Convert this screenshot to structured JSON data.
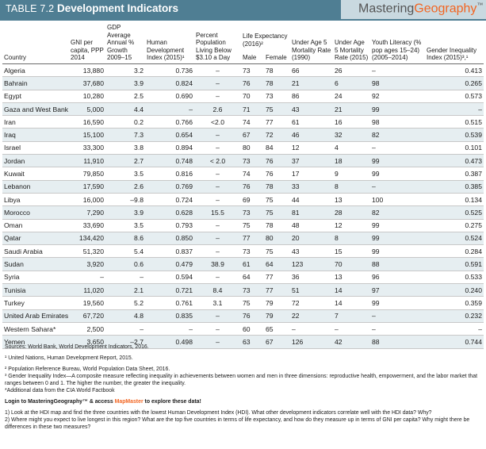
{
  "header": {
    "table_number": "TABLE 7.2",
    "title": "Development Indicators",
    "brand": {
      "part1": "Mastering",
      "part2": "Geography",
      "mark": "™"
    }
  },
  "columns": {
    "country": "Country",
    "gni": "GNI per capita, PPP 2014",
    "gdp": "GDP Average Annual % Growth 2009–15",
    "hdi": "Human Development Index (2015)¹",
    "poverty": "Percent Population Living Below $3.10 a Day",
    "life_group": "Life Expectancy (2016)²",
    "male": "Male",
    "female": "Female",
    "u5_1990": "Under Age 5 Mortality Rate (1990)",
    "u5_2015": "Under Age 5 Mortality Rate (2015)",
    "literacy": "Youth Literacy (% pop ages 15–24) (2005–2014)",
    "gii": "Gender Inequality Index (2015)³,¹"
  },
  "rows": [
    {
      "country": "Algeria",
      "gni": "13,880",
      "gdp": "3.2",
      "hdi": "0.736",
      "poverty": "–",
      "male": "73",
      "female": "78",
      "u5_1990": "66",
      "u5_2015": "26",
      "literacy": "–",
      "gii": "0.413"
    },
    {
      "country": "Bahrain",
      "gni": "37,680",
      "gdp": "3.9",
      "hdi": "0.824",
      "poverty": "–",
      "male": "76",
      "female": "78",
      "u5_1990": "21",
      "u5_2015": "6",
      "literacy": "98",
      "gii": "0.265"
    },
    {
      "country": "Egypt",
      "gni": "10,280",
      "gdp": "2.5",
      "hdi": "0.690",
      "poverty": "–",
      "male": "70",
      "female": "73",
      "u5_1990": "86",
      "u5_2015": "24",
      "literacy": "92",
      "gii": "0.573"
    },
    {
      "country": "Gaza and West Bank",
      "gni": "5,000",
      "gdp": "4.4",
      "hdi": "–",
      "poverty": "2.6",
      "male": "71",
      "female": "75",
      "u5_1990": "43",
      "u5_2015": "21",
      "literacy": "99",
      "gii": "–"
    },
    {
      "country": "Iran",
      "gni": "16,590",
      "gdp": "0.2",
      "hdi": "0.766",
      "poverty": "<2.0",
      "male": "74",
      "female": "77",
      "u5_1990": "61",
      "u5_2015": "16",
      "literacy": "98",
      "gii": "0.515"
    },
    {
      "country": "Iraq",
      "gni": "15,100",
      "gdp": "7.3",
      "hdi": "0.654",
      "poverty": "–",
      "male": "67",
      "female": "72",
      "u5_1990": "46",
      "u5_2015": "32",
      "literacy": "82",
      "gii": "0.539"
    },
    {
      "country": "Israel",
      "gni": "33,300",
      "gdp": "3.8",
      "hdi": "0.894",
      "poverty": "–",
      "male": "80",
      "female": "84",
      "u5_1990": "12",
      "u5_2015": "4",
      "literacy": "–",
      "gii": "0.101"
    },
    {
      "country": "Jordan",
      "gni": "11,910",
      "gdp": "2.7",
      "hdi": "0.748",
      "poverty": "< 2.0",
      "male": "73",
      "female": "76",
      "u5_1990": "37",
      "u5_2015": "18",
      "literacy": "99",
      "gii": "0.473"
    },
    {
      "country": "Kuwait",
      "gni": "79,850",
      "gdp": "3.5",
      "hdi": "0.816",
      "poverty": "–",
      "male": "74",
      "female": "76",
      "u5_1990": "17",
      "u5_2015": "9",
      "literacy": "99",
      "gii": "0.387"
    },
    {
      "country": "Lebanon",
      "gni": "17,590",
      "gdp": "2.6",
      "hdi": "0.769",
      "poverty": "–",
      "male": "76",
      "female": "78",
      "u5_1990": "33",
      "u5_2015": "8",
      "literacy": "–",
      "gii": "0.385"
    },
    {
      "country": "Libya",
      "gni": "16,000",
      "gdp": "–9.8",
      "hdi": "0.724",
      "poverty": "–",
      "male": "69",
      "female": "75",
      "u5_1990": "44",
      "u5_2015": "13",
      "literacy": "100",
      "gii": "0.134"
    },
    {
      "country": "Morocco",
      "gni": "7,290",
      "gdp": "3.9",
      "hdi": "0.628",
      "poverty": "15.5",
      "male": "73",
      "female": "75",
      "u5_1990": "81",
      "u5_2015": "28",
      "literacy": "82",
      "gii": "0.525"
    },
    {
      "country": "Oman",
      "gni": "33,690",
      "gdp": "3.5",
      "hdi": "0.793",
      "poverty": "–",
      "male": "75",
      "female": "78",
      "u5_1990": "48",
      "u5_2015": "12",
      "literacy": "99",
      "gii": "0.275"
    },
    {
      "country": "Qatar",
      "gni": "134,420",
      "gdp": "8.6",
      "hdi": "0.850",
      "poverty": "–",
      "male": "77",
      "female": "80",
      "u5_1990": "20",
      "u5_2015": "8",
      "literacy": "99",
      "gii": "0.524"
    },
    {
      "country": "Saudi Arabia",
      "gni": "51,320",
      "gdp": "5.4",
      "hdi": "0.837",
      "poverty": "–",
      "male": "73",
      "female": "75",
      "u5_1990": "43",
      "u5_2015": "15",
      "literacy": "99",
      "gii": "0.284"
    },
    {
      "country": "Sudan",
      "gni": "3,920",
      "gdp": "0.6",
      "hdi": "0.479",
      "poverty": "38.9",
      "male": "61",
      "female": "64",
      "u5_1990": "123",
      "u5_2015": "70",
      "literacy": "88",
      "gii": "0.591"
    },
    {
      "country": "Syria",
      "gni": "–",
      "gdp": "–",
      "hdi": "0.594",
      "poverty": "–",
      "male": "64",
      "female": "77",
      "u5_1990": "36",
      "u5_2015": "13",
      "literacy": "96",
      "gii": "0.533"
    },
    {
      "country": "Tunisia",
      "gni": "11,020",
      "gdp": "2.1",
      "hdi": "0.721",
      "poverty": "8.4",
      "male": "73",
      "female": "77",
      "u5_1990": "51",
      "u5_2015": "14",
      "literacy": "97",
      "gii": "0.240"
    },
    {
      "country": "Turkey",
      "gni": "19,560",
      "gdp": "5.2",
      "hdi": "0.761",
      "poverty": "3.1",
      "male": "75",
      "female": "79",
      "u5_1990": "72",
      "u5_2015": "14",
      "literacy": "99",
      "gii": "0.359"
    },
    {
      "country": "United Arab Emirates",
      "gni": "67,720",
      "gdp": "4.8",
      "hdi": "0.835",
      "poverty": "–",
      "male": "76",
      "female": "79",
      "u5_1990": "22",
      "u5_2015": "7",
      "literacy": "–",
      "gii": "0.232"
    },
    {
      "country": "Western Sahara*",
      "gni": "2,500",
      "gdp": "–",
      "hdi": "–",
      "poverty": "–",
      "male": "60",
      "female": "65",
      "u5_1990": "–",
      "u5_2015": "–",
      "literacy": "–",
      "gii": "–"
    },
    {
      "country": "Yemen",
      "gni": "3,650",
      "gdp": "–2.7",
      "hdi": "0.498",
      "poverty": "–",
      "male": "63",
      "female": "67",
      "u5_1990": "126",
      "u5_2015": "42",
      "literacy": "88",
      "gii": "0.744"
    }
  ],
  "notes": {
    "sources": "Sources: World Bank, World Development Indicators, 2016.",
    "n1": "¹ United Nations, Human Development Report, 2015.",
    "n2": "² Population Reference Bureau, World Population Data Sheet, 2016.",
    "n3": "³ Gender Inequality Index—A composite measure reflecting inequality in achievements between women and men in three dimensions: reproductive health, empowerment, and the labor market that ranges between 0 and 1. The higher the number, the greater the inequality.",
    "n4": "*Additional data from the CIA World Factbook",
    "login_a": "Login to ",
    "login_brand": "MasteringGeography™",
    "login_b": " & access ",
    "login_map": "MapMaster",
    "login_c": " to explore these data!",
    "q1": "1) Look at the HDI map and find the three countries with the lowest Human Development Index (HDI). What other development indicators correlate well with the HDI data? Why?",
    "q2": "2) Where might you expect to live longest in this region? What are the top five countries in terms of life expectancy, and how do they measure up in terms of GNI per capita? Why might there be differences in these two measures?"
  }
}
